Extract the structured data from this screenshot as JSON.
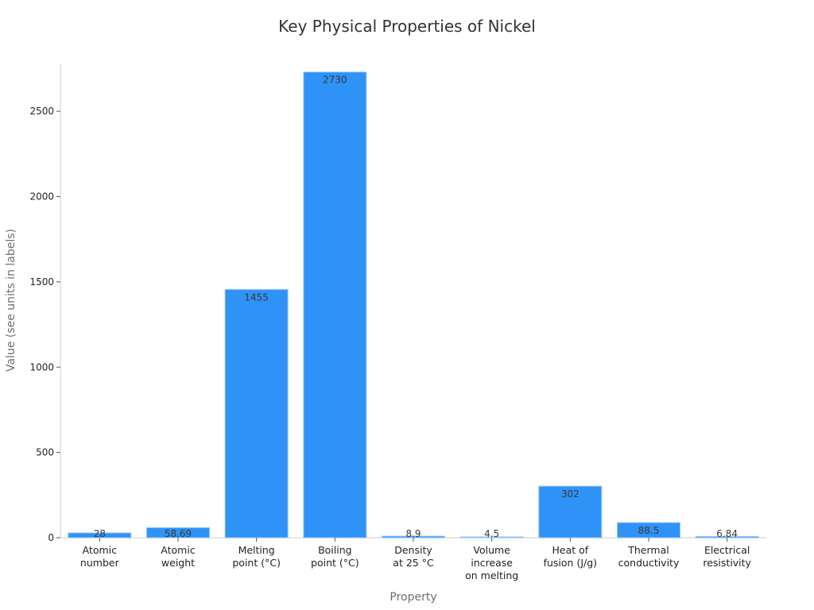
{
  "chart_data": {
    "type": "bar",
    "title": "Key Physical Properties of Nickel",
    "xlabel": "Property",
    "ylabel": "Value (see units in labels)",
    "ylim": [
      0,
      2780
    ],
    "yticks": [
      0,
      500,
      1000,
      1500,
      2000,
      2500
    ],
    "grid": false,
    "bar_color": "#2f92f7",
    "categories": [
      [
        "Atomic",
        "number"
      ],
      [
        "Atomic",
        "weight"
      ],
      [
        "Melting",
        "point (°C)"
      ],
      [
        "Boiling",
        "point (°C)"
      ],
      [
        "Density",
        "at 25 °C"
      ],
      [
        "Volume",
        "increase",
        "on melting"
      ],
      [
        "Heat of",
        "fusion (J/g)"
      ],
      [
        "Thermal",
        "conductivity"
      ],
      [
        "Electrical",
        "resistivity"
      ]
    ],
    "values": [
      28,
      58.69,
      1455,
      2730,
      8.9,
      4.5,
      302,
      88.5,
      6.84
    ],
    "data_labels": [
      "28",
      "58.69",
      "1455",
      "2730",
      "8.9",
      "4.5",
      "302",
      "88.5",
      "6.84"
    ]
  }
}
